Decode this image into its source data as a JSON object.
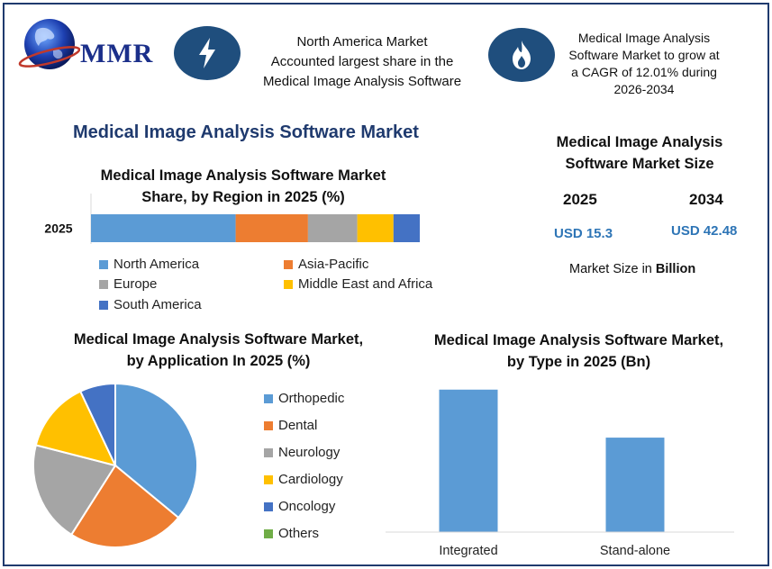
{
  "brand": {
    "name": "MMR"
  },
  "header": {
    "headline_left": [
      "North America Market",
      "Accounted largest share in the",
      "Medical Image Analysis Software"
    ],
    "headline_right": [
      "Medical Image Analysis",
      "Software Market to grow at",
      "a CAGR of 12.01% during",
      "2026-2034"
    ],
    "icon_left": "lightning-bolt-icon",
    "icon_right": "flame-icon"
  },
  "main_title": "Medical Image Analysis Software Market",
  "market_size": {
    "title_line1": "Medical Image Analysis",
    "title_line2": "Software Market Size",
    "year1": "2025",
    "year2": "2034",
    "value1": "USD 15.3",
    "value2": "USD 42.48",
    "note_prefix": "Market Size in ",
    "note_unit": "Billion"
  },
  "colors": {
    "north_america": "#5b9bd5",
    "asia_pacific": "#ed7d31",
    "europe": "#a5a5a5",
    "middle_east_africa": "#ffc000",
    "south_america": "#4472c4",
    "others": "#70ad47",
    "brand_navy": "#1f3a6e",
    "accent_blue": "#2e75b6"
  },
  "chart_data": [
    {
      "type": "bar",
      "orientation": "horizontal-stacked",
      "title_line1": "Medical Image Analysis Software Market",
      "title_line2": "Share, by Region in 2025 (%)",
      "categories": [
        "2025"
      ],
      "series": [
        {
          "name": "North America",
          "values": [
            44
          ]
        },
        {
          "name": "Asia-Pacific",
          "values": [
            22
          ]
        },
        {
          "name": "Europe",
          "values": [
            15
          ]
        },
        {
          "name": "Middle East and Africa",
          "values": [
            11
          ]
        },
        {
          "name": "South America",
          "values": [
            8
          ]
        }
      ],
      "xlim": [
        0,
        100
      ],
      "legend": "bottom"
    },
    {
      "type": "pie",
      "title_line1": "Medical Image Analysis Software Market,",
      "title_line2": "by Application In 2025 (%)",
      "labels": [
        "Orthopedic",
        "Dental",
        "Neurology",
        "Cardiology",
        "Oncology",
        "Others"
      ],
      "values": [
        36,
        23,
        20,
        14,
        7,
        0
      ],
      "legend": "right"
    },
    {
      "type": "bar",
      "title_line1": "Medical Image Analysis Software Market,",
      "title_line2": "by Type in 2025 (Bn)",
      "categories": [
        "Integrated",
        "Stand-alone"
      ],
      "values": [
        9.2,
        6.1
      ],
      "ylim": [
        0,
        10
      ],
      "grid": false
    }
  ]
}
